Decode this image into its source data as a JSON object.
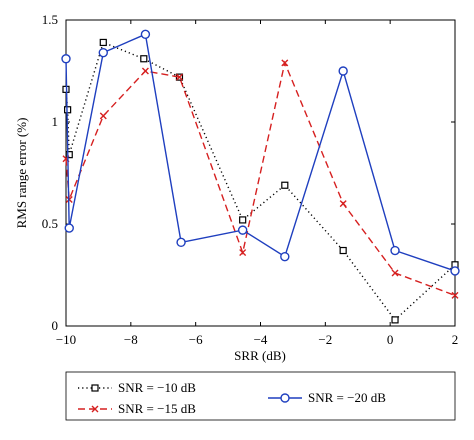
{
  "chart_data": {
    "type": "line",
    "xlabel": "SRR (dB)",
    "ylabel": "RMS range error (%)",
    "xlim": [
      -10,
      2
    ],
    "ylim": [
      0,
      1.5
    ],
    "xticks": [
      -10,
      -8,
      -6,
      -4,
      -2,
      0,
      2
    ],
    "yticks": [
      0,
      0.5,
      1,
      1.5
    ],
    "xtick_labels": [
      "−10",
      "−8",
      "−6",
      "−4",
      "−2",
      "0",
      "2"
    ],
    "ytick_labels": [
      "0",
      "0.5",
      "1",
      "1.5"
    ],
    "grid": false,
    "legend_position": "below the plot",
    "series": [
      {
        "name": "SNR = −10 dB",
        "color": "#000000",
        "line_style": "dotted",
        "marker": "square",
        "x": [
          -10,
          -9.95,
          -9.9,
          -8.85,
          -7.6,
          -6.5,
          -4.55,
          -3.25,
          -1.45,
          0.15,
          2
        ],
        "y": [
          1.16,
          1.06,
          0.84,
          1.39,
          1.31,
          1.22,
          0.52,
          0.69,
          0.37,
          0.03,
          0.3
        ]
      },
      {
        "name": "SNR = −15 dB",
        "color": "#d62020",
        "line_style": "dashed",
        "marker": "x",
        "x": [
          -10,
          -9.9,
          -8.85,
          -7.55,
          -6.5,
          -4.55,
          -3.25,
          -1.45,
          0.15,
          2
        ],
        "y": [
          0.82,
          0.62,
          1.03,
          1.25,
          1.22,
          0.36,
          1.29,
          0.6,
          0.26,
          0.15
        ]
      },
      {
        "name": "SNR = −20 dB",
        "color": "#1f3fbf",
        "line_style": "solid",
        "marker": "circle",
        "x": [
          -10,
          -9.9,
          -8.85,
          -7.55,
          -6.45,
          -4.55,
          -3.25,
          -1.45,
          0.15,
          2
        ],
        "y": [
          1.31,
          0.48,
          1.34,
          1.43,
          0.41,
          0.47,
          0.34,
          1.25,
          0.37,
          0.27
        ]
      }
    ]
  }
}
